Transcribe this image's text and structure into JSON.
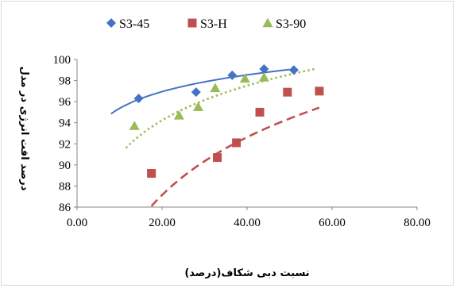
{
  "chart_data": {
    "type": "scatter",
    "xlabel": "نسبت دبی شکاف(درصد)",
    "ylabel": "درصد افت انرژی در مدل",
    "xlim": [
      0,
      80
    ],
    "ylim": [
      86,
      100
    ],
    "x_ticks": [
      "0.00",
      "20.00",
      "40.00",
      "60.00",
      "80.00"
    ],
    "y_ticks": [
      "86",
      "88",
      "90",
      "92",
      "94",
      "96",
      "98",
      "100"
    ],
    "grid": false,
    "legend_position": "top",
    "series": [
      {
        "name": "S3-45",
        "marker": "diamond",
        "color": "#4472C4",
        "trendline": "solid",
        "x": [
          14.5,
          28.0,
          36.5,
          44.0,
          51.0
        ],
        "y": [
          96.3,
          96.9,
          98.5,
          99.1,
          99.0
        ],
        "trend_x": [
          8,
          50
        ],
        "trend_coef": [
          90.09,
          2.29
        ]
      },
      {
        "name": "S3-H",
        "marker": "square",
        "color": "#C0504D",
        "trendline": "dashed",
        "x": [
          17.5,
          33.0,
          37.5,
          43.0,
          49.5,
          57.0
        ],
        "y": [
          89.2,
          90.7,
          92.1,
          95.0,
          96.9,
          97.0
        ],
        "trend_x": [
          17.5,
          57
        ],
        "trend_coef": [
          63.45,
          7.91
        ]
      },
      {
        "name": "S3-90",
        "marker": "triangle",
        "color": "#9BBB59",
        "trendline": "dotted",
        "x": [
          13.5,
          24.0,
          28.5,
          32.5,
          39.5,
          44.0
        ],
        "y": [
          93.7,
          94.7,
          95.5,
          97.3,
          98.2,
          98.3
        ],
        "trend_x": [
          11.5,
          56
        ],
        "trend_coef": [
          80.03,
          4.74
        ]
      }
    ]
  }
}
